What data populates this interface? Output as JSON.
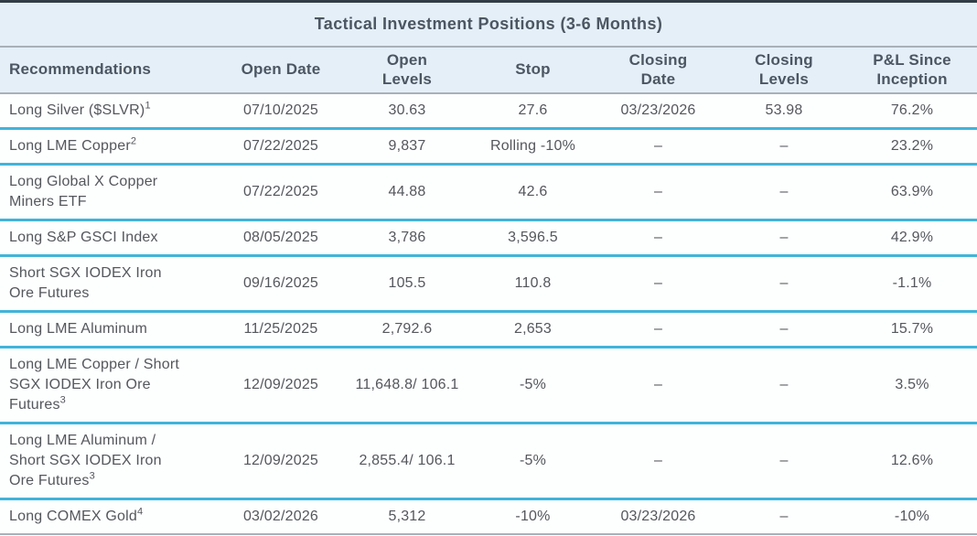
{
  "table": {
    "title": "Tactical Investment Positions (3-6 Months)",
    "columns": [
      "Recommendations",
      "Open Date",
      "Open\nLevels",
      "Stop",
      "Closing\nDate",
      "Closing\nLevels",
      "P&L Since\nInception"
    ],
    "rows": [
      {
        "recommendation": "Long Silver ($SLVR)",
        "footnote": "1",
        "open_date": "07/10/2025",
        "open_levels": "30.63",
        "stop": "27.6",
        "closing_date": "03/23/2026",
        "closing_levels": "53.98",
        "pnl": "76.2%"
      },
      {
        "recommendation": "Long LME Copper",
        "footnote": "2",
        "open_date": "07/22/2025",
        "open_levels": "9,837",
        "stop": "Rolling -10%",
        "closing_date": "–",
        "closing_levels": "–",
        "pnl": "23.2%"
      },
      {
        "recommendation": "Long Global X Copper Miners ETF",
        "footnote": "",
        "open_date": "07/22/2025",
        "open_levels": "44.88",
        "stop": "42.6",
        "closing_date": "–",
        "closing_levels": "–",
        "pnl": "63.9%"
      },
      {
        "recommendation": "Long S&P GSCI Index",
        "footnote": "",
        "open_date": "08/05/2025",
        "open_levels": "3,786",
        "stop": "3,596.5",
        "closing_date": "–",
        "closing_levels": "–",
        "pnl": "42.9%"
      },
      {
        "recommendation": "Short SGX IODEX Iron Ore Futures",
        "footnote": "",
        "open_date": "09/16/2025",
        "open_levels": "105.5",
        "stop": "110.8",
        "closing_date": "–",
        "closing_levels": "–",
        "pnl": "-1.1%"
      },
      {
        "recommendation": "Long LME Aluminum",
        "footnote": "",
        "open_date": "11/25/2025",
        "open_levels": "2,792.6",
        "stop": "2,653",
        "closing_date": "–",
        "closing_levels": "–",
        "pnl": "15.7%"
      },
      {
        "recommendation": "Long LME Copper / Short SGX IODEX Iron Ore Futures",
        "footnote": "3",
        "open_date": "12/09/2025",
        "open_levels": "11,648.8/ 106.1",
        "stop": "-5%",
        "closing_date": "–",
        "closing_levels": "–",
        "pnl": "3.5%"
      },
      {
        "recommendation": "Long LME Aluminum / Short SGX IODEX Iron Ore Futures",
        "footnote": "3",
        "open_date": "12/09/2025",
        "open_levels": "2,855.4/ 106.1",
        "stop": "-5%",
        "closing_date": "–",
        "closing_levels": "–",
        "pnl": "12.6%"
      },
      {
        "recommendation": "Long COMEX Gold",
        "footnote": "4",
        "open_date": "03/02/2026",
        "open_levels": "5,312",
        "stop": "-10%",
        "closing_date": "03/23/2026",
        "closing_levels": "–",
        "pnl": "-10%"
      }
    ]
  },
  "colors": {
    "top_bar": "#333d47",
    "header_bg": "#e4eff8",
    "header_text": "#4c5663",
    "body_text": "#54575c",
    "row_divider": "#41b4d9",
    "section_divider": "#a9b0b8"
  }
}
